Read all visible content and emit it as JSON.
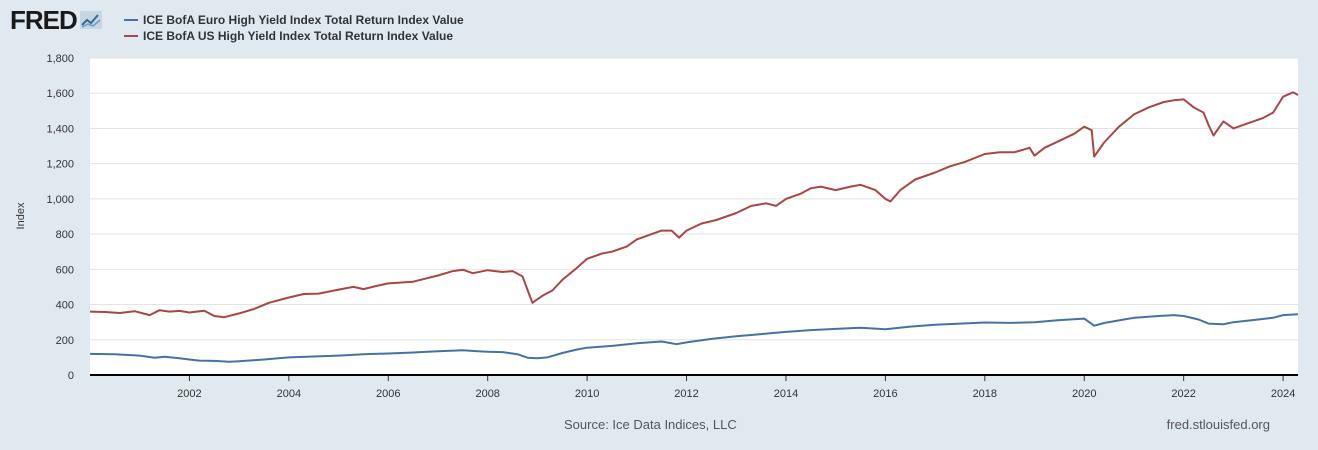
{
  "header": {
    "logo_text": "FRED"
  },
  "footer": {
    "source": "Source: Ice Data Indices, LLC",
    "site": "fred.stlouisfed.org"
  },
  "chart_data": {
    "type": "line",
    "title": "",
    "xlabel": "",
    "ylabel": "Index",
    "xlim": [
      2000.0,
      2024.3
    ],
    "ylim": [
      0,
      1800
    ],
    "yticks": [
      0,
      200,
      400,
      600,
      800,
      1000,
      1200,
      1400,
      1600,
      1800
    ],
    "xticks": [
      2002,
      2004,
      2006,
      2008,
      2010,
      2012,
      2014,
      2016,
      2018,
      2020,
      2022,
      2024
    ],
    "ytick_labels": [
      "0",
      "200",
      "400",
      "600",
      "800",
      "1,000",
      "1,200",
      "1,400",
      "1,600",
      "1,800"
    ],
    "xtick_labels": [
      "2002",
      "2004",
      "2006",
      "2008",
      "2010",
      "2012",
      "2014",
      "2016",
      "2018",
      "2020",
      "2022",
      "2024"
    ],
    "grid": true,
    "legend_position": "top-left",
    "series": [
      {
        "name": "ICE BofA Euro High Yield Index Total Return Index Value",
        "color": "#4572a7",
        "points": [
          [
            2000.0,
            120
          ],
          [
            2000.5,
            118
          ],
          [
            2001.0,
            110
          ],
          [
            2001.3,
            98
          ],
          [
            2001.5,
            104
          ],
          [
            2001.8,
            95
          ],
          [
            2002.0,
            88
          ],
          [
            2002.2,
            82
          ],
          [
            2002.5,
            80
          ],
          [
            2002.8,
            75
          ],
          [
            2003.0,
            78
          ],
          [
            2003.5,
            88
          ],
          [
            2004.0,
            100
          ],
          [
            2004.5,
            105
          ],
          [
            2005.0,
            110
          ],
          [
            2005.5,
            118
          ],
          [
            2006.0,
            122
          ],
          [
            2006.5,
            128
          ],
          [
            2007.0,
            135
          ],
          [
            2007.5,
            140
          ],
          [
            2007.8,
            135
          ],
          [
            2008.0,
            132
          ],
          [
            2008.3,
            130
          ],
          [
            2008.6,
            118
          ],
          [
            2008.8,
            98
          ],
          [
            2009.0,
            95
          ],
          [
            2009.2,
            100
          ],
          [
            2009.5,
            125
          ],
          [
            2009.8,
            145
          ],
          [
            2010.0,
            155
          ],
          [
            2010.5,
            165
          ],
          [
            2011.0,
            180
          ],
          [
            2011.5,
            190
          ],
          [
            2011.8,
            175
          ],
          [
            2012.0,
            185
          ],
          [
            2012.5,
            205
          ],
          [
            2013.0,
            220
          ],
          [
            2013.5,
            232
          ],
          [
            2014.0,
            245
          ],
          [
            2014.5,
            255
          ],
          [
            2015.0,
            262
          ],
          [
            2015.5,
            268
          ],
          [
            2016.0,
            260
          ],
          [
            2016.5,
            275
          ],
          [
            2017.0,
            285
          ],
          [
            2017.5,
            292
          ],
          [
            2018.0,
            298
          ],
          [
            2018.5,
            296
          ],
          [
            2019.0,
            300
          ],
          [
            2019.5,
            312
          ],
          [
            2020.0,
            320
          ],
          [
            2020.2,
            280
          ],
          [
            2020.4,
            295
          ],
          [
            2020.8,
            315
          ],
          [
            2021.0,
            325
          ],
          [
            2021.5,
            335
          ],
          [
            2021.8,
            340
          ],
          [
            2022.0,
            335
          ],
          [
            2022.3,
            315
          ],
          [
            2022.5,
            292
          ],
          [
            2022.8,
            288
          ],
          [
            2023.0,
            300
          ],
          [
            2023.5,
            315
          ],
          [
            2023.8,
            325
          ],
          [
            2024.0,
            340
          ],
          [
            2024.3,
            345
          ]
        ]
      },
      {
        "name": "ICE BofA US High Yield Index Total Return Index Value",
        "color": "#aa4643",
        "points": [
          [
            2000.0,
            360
          ],
          [
            2000.3,
            358
          ],
          [
            2000.6,
            352
          ],
          [
            2000.9,
            362
          ],
          [
            2001.2,
            340
          ],
          [
            2001.4,
            368
          ],
          [
            2001.6,
            360
          ],
          [
            2001.8,
            364
          ],
          [
            2002.0,
            355
          ],
          [
            2002.3,
            365
          ],
          [
            2002.5,
            335
          ],
          [
            2002.7,
            328
          ],
          [
            2003.0,
            350
          ],
          [
            2003.3,
            375
          ],
          [
            2003.6,
            410
          ],
          [
            2004.0,
            440
          ],
          [
            2004.3,
            460
          ],
          [
            2004.6,
            462
          ],
          [
            2005.0,
            485
          ],
          [
            2005.3,
            500
          ],
          [
            2005.5,
            488
          ],
          [
            2005.8,
            508
          ],
          [
            2006.0,
            520
          ],
          [
            2006.5,
            530
          ],
          [
            2007.0,
            565
          ],
          [
            2007.3,
            590
          ],
          [
            2007.5,
            598
          ],
          [
            2007.7,
            578
          ],
          [
            2008.0,
            595
          ],
          [
            2008.3,
            585
          ],
          [
            2008.5,
            590
          ],
          [
            2008.7,
            560
          ],
          [
            2008.9,
            410
          ],
          [
            2009.1,
            450
          ],
          [
            2009.3,
            480
          ],
          [
            2009.5,
            540
          ],
          [
            2009.8,
            610
          ],
          [
            2010.0,
            660
          ],
          [
            2010.3,
            690
          ],
          [
            2010.5,
            700
          ],
          [
            2010.8,
            730
          ],
          [
            2011.0,
            770
          ],
          [
            2011.3,
            800
          ],
          [
            2011.5,
            820
          ],
          [
            2011.7,
            820
          ],
          [
            2011.85,
            780
          ],
          [
            2012.0,
            820
          ],
          [
            2012.3,
            860
          ],
          [
            2012.6,
            880
          ],
          [
            2013.0,
            920
          ],
          [
            2013.3,
            960
          ],
          [
            2013.6,
            975
          ],
          [
            2013.8,
            960
          ],
          [
            2014.0,
            1000
          ],
          [
            2014.3,
            1030
          ],
          [
            2014.5,
            1060
          ],
          [
            2014.7,
            1070
          ],
          [
            2015.0,
            1050
          ],
          [
            2015.3,
            1070
          ],
          [
            2015.5,
            1080
          ],
          [
            2015.8,
            1050
          ],
          [
            2016.0,
            1000
          ],
          [
            2016.1,
            985
          ],
          [
            2016.3,
            1050
          ],
          [
            2016.6,
            1110
          ],
          [
            2017.0,
            1150
          ],
          [
            2017.3,
            1185
          ],
          [
            2017.6,
            1210
          ],
          [
            2018.0,
            1255
          ],
          [
            2018.3,
            1265
          ],
          [
            2018.6,
            1265
          ],
          [
            2018.9,
            1290
          ],
          [
            2019.0,
            1245
          ],
          [
            2019.2,
            1290
          ],
          [
            2019.5,
            1330
          ],
          [
            2019.8,
            1370
          ],
          [
            2020.0,
            1410
          ],
          [
            2020.15,
            1390
          ],
          [
            2020.2,
            1240
          ],
          [
            2020.4,
            1320
          ],
          [
            2020.7,
            1410
          ],
          [
            2021.0,
            1480
          ],
          [
            2021.3,
            1520
          ],
          [
            2021.6,
            1550
          ],
          [
            2021.8,
            1560
          ],
          [
            2022.0,
            1565
          ],
          [
            2022.2,
            1520
          ],
          [
            2022.4,
            1490
          ],
          [
            2022.5,
            1420
          ],
          [
            2022.6,
            1360
          ],
          [
            2022.8,
            1440
          ],
          [
            2023.0,
            1400
          ],
          [
            2023.3,
            1430
          ],
          [
            2023.6,
            1460
          ],
          [
            2023.8,
            1490
          ],
          [
            2024.0,
            1580
          ],
          [
            2024.2,
            1605
          ],
          [
            2024.3,
            1590
          ]
        ]
      }
    ]
  }
}
